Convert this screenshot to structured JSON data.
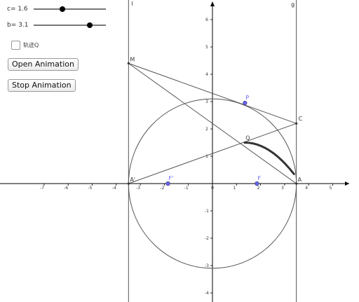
{
  "controls": {
    "slider_c": {
      "label": "c= 1.6",
      "value": 1.6,
      "min": 0,
      "max": 4
    },
    "slider_b": {
      "label": "b= 3.1",
      "value": 3.1,
      "min": 0,
      "max": 4
    },
    "trace_checkbox": {
      "label": "轨迹Q",
      "checked": false
    },
    "open_animation_label": "Open Animation",
    "stop_animation_label": "Stop Animation"
  },
  "axes": {
    "x_ticks": [
      "-7",
      "-6",
      "-5",
      "-4",
      "-3",
      "-2",
      "-1",
      "0",
      "1",
      "2",
      "3",
      "4",
      "5"
    ],
    "y_ticks": [
      "6",
      "5",
      "4",
      "3",
      "2",
      "1",
      "-1",
      "-2",
      "-3",
      "-4"
    ]
  },
  "lines": {
    "l": "l",
    "g": "g"
  },
  "points": {
    "M": "M",
    "P": "P",
    "C": "C",
    "Q": "Q",
    "A_prime": "A'",
    "A": "A",
    "F_prime": "F'",
    "F": "F"
  },
  "colors": {
    "focus_point": "#6666ff",
    "curve": "#555555",
    "trace_curve": "#333333",
    "axis": "#000000",
    "text": "#333333"
  }
}
